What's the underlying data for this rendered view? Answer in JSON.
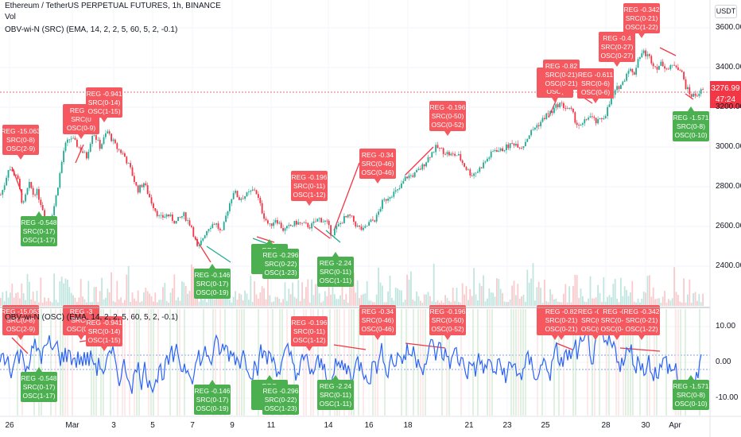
{
  "header": {
    "title": "Ethereum / TetherUS PERPETUAL FUTURES, 1h, BINANCE",
    "vol_label": "Vol",
    "indicator_label": "OBV-wi-N (SRC) (EMA, 14, 2, 2, 5, 60, 5, 2, -0.1)",
    "osc_label": "OBV-wi-N (OSC) (EMA, 14, 2, 2, 5, 60, 5, 2, -0.1)"
  },
  "scale_badge": "USDT",
  "price_tag": {
    "price": "3276.99",
    "countdown": "47:24"
  },
  "colors": {
    "bear": "#f23645",
    "bull": "#22ab94",
    "bear_box": "#f5595f",
    "bull_box": "#4caf50",
    "osc_line": "#2962ff"
  },
  "chart_data": [
    {
      "type": "line",
      "name": "price-panel",
      "x": [
        "26",
        "Mar",
        "3",
        "5",
        "7",
        "9",
        "11",
        "14",
        "16",
        "18",
        "21",
        "23",
        "25",
        "28",
        "30",
        "Apr"
      ],
      "y_ticks": [
        "3600.00",
        "3400.00",
        "3200.00",
        "3000.00",
        "2800.00",
        "2600.00",
        "2400.00"
      ],
      "ylim": [
        2200,
        3650
      ],
      "price_path": [
        [
          0,
          2760
        ],
        [
          4,
          2800
        ],
        [
          10,
          2900
        ],
        [
          15,
          2870
        ],
        [
          20,
          2860
        ],
        [
          28,
          2700
        ],
        [
          33,
          2780
        ],
        [
          37,
          2820
        ],
        [
          40,
          2760
        ],
        [
          45,
          2780
        ],
        [
          52,
          2700
        ],
        [
          57,
          2640
        ],
        [
          63,
          2650
        ],
        [
          66,
          2680
        ],
        [
          70,
          2760
        ],
        [
          80,
          3000
        ],
        [
          88,
          3050
        ],
        [
          98,
          3000
        ],
        [
          108,
          2950
        ],
        [
          116,
          3080
        ],
        [
          125,
          3000
        ],
        [
          134,
          3080
        ],
        [
          145,
          3000
        ],
        [
          155,
          2960
        ],
        [
          164,
          2880
        ],
        [
          172,
          2780
        ],
        [
          180,
          2820
        ],
        [
          190,
          2720
        ],
        [
          200,
          2640
        ],
        [
          210,
          2660
        ],
        [
          220,
          2620
        ],
        [
          230,
          2660
        ],
        [
          240,
          2600
        ],
        [
          248,
          2480
        ],
        [
          256,
          2560
        ],
        [
          262,
          2600
        ],
        [
          270,
          2620
        ],
        [
          278,
          2560
        ],
        [
          285,
          2680
        ],
        [
          293,
          2780
        ],
        [
          300,
          2740
        ],
        [
          310,
          2760
        ],
        [
          320,
          2790
        ],
        [
          330,
          2660
        ],
        [
          338,
          2600
        ],
        [
          346,
          2640
        ],
        [
          356,
          2580
        ],
        [
          364,
          2600
        ],
        [
          372,
          2620
        ],
        [
          380,
          2610
        ],
        [
          390,
          2600
        ],
        [
          400,
          2640
        ],
        [
          410,
          2620
        ],
        [
          416,
          2560
        ],
        [
          424,
          2600
        ],
        [
          432,
          2640
        ],
        [
          440,
          2650
        ],
        [
          448,
          2600
        ],
        [
          456,
          2580
        ],
        [
          464,
          2620
        ],
        [
          472,
          2640
        ],
        [
          480,
          2720
        ],
        [
          490,
          2760
        ],
        [
          500,
          2780
        ],
        [
          510,
          2850
        ],
        [
          520,
          2860
        ],
        [
          530,
          2900
        ],
        [
          540,
          2960
        ],
        [
          548,
          3000
        ],
        [
          556,
          2980
        ],
        [
          566,
          2960
        ],
        [
          575,
          2960
        ],
        [
          584,
          2900
        ],
        [
          592,
          2860
        ],
        [
          600,
          2880
        ],
        [
          608,
          2920
        ],
        [
          616,
          2960
        ],
        [
          622,
          2990
        ],
        [
          628,
          2980
        ],
        [
          636,
          3000
        ],
        [
          646,
          3020
        ],
        [
          656,
          3000
        ],
        [
          664,
          3060
        ],
        [
          672,
          3100
        ],
        [
          678,
          3120
        ],
        [
          686,
          3160
        ],
        [
          694,
          3180
        ],
        [
          702,
          3220
        ],
        [
          710,
          3200
        ],
        [
          718,
          3180
        ],
        [
          724,
          3120
        ],
        [
          730,
          3100
        ],
        [
          740,
          3160
        ],
        [
          750,
          3120
        ],
        [
          760,
          3160
        ],
        [
          768,
          3240
        ],
        [
          776,
          3300
        ],
        [
          782,
          3320
        ],
        [
          790,
          3400
        ],
        [
          796,
          3360
        ],
        [
          802,
          3450
        ],
        [
          808,
          3480
        ],
        [
          816,
          3450
        ],
        [
          824,
          3400
        ],
        [
          832,
          3420
        ],
        [
          840,
          3390
        ],
        [
          848,
          3420
        ],
        [
          856,
          3380
        ],
        [
          862,
          3300
        ],
        [
          868,
          3260
        ],
        [
          874,
          3260
        ],
        [
          880,
          3280
        ]
      ],
      "annotations": [
        {
          "kind": "bear",
          "lines": [
            "REG -15.063",
            "SRC(0-8)",
            "OSC(2-9)"
          ]
        },
        {
          "kind": "bear",
          "lines": [
            "REG -3",
            "SRC(0",
            "OSC(0-9)"
          ]
        },
        {
          "kind": "bear",
          "lines": [
            "REG -0.941",
            "SRC(0-14)",
            "OSC(1-15)"
          ]
        },
        {
          "kind": "bear",
          "lines": [
            "REG -0.196",
            "SRC(0-11)",
            "OSC(1-12)"
          ]
        },
        {
          "kind": "bear",
          "lines": [
            "REG -0.34",
            "SRC(0-46)",
            "OSC(0-46)"
          ]
        },
        {
          "kind": "bear",
          "lines": [
            "REG -0.196",
            "SRC(0-50)",
            "OSC(0-52)"
          ]
        },
        {
          "kind": "bear",
          "lines": [
            "REG",
            "S",
            "OSC("
          ]
        },
        {
          "kind": "bear",
          "lines": [
            "REG -0.82",
            "SRC(0-21)",
            "OSC(0-21)"
          ]
        },
        {
          "kind": "bear",
          "lines": [
            "REG -0.611",
            "SRC(0-6)",
            "OSC(0-6)"
          ]
        },
        {
          "kind": "bear",
          "lines": [
            "REG -0.4",
            "SRC(0-27)",
            "OSC(0-27)"
          ]
        },
        {
          "kind": "bear",
          "lines": [
            "REG -0.342",
            "SRC(0-21)",
            "OSC(1-22)"
          ]
        },
        {
          "kind": "bull",
          "lines": [
            "REG -0.548",
            "SRC(0-17)",
            "OSC(1-17)"
          ]
        },
        {
          "kind": "bull",
          "lines": [
            "REG -0.146",
            "SRC(0-17)",
            "OSC(0-19)"
          ]
        },
        {
          "kind": "bull",
          "lines": [
            "REG",
            "S",
            "OSC"
          ]
        },
        {
          "kind": "bull",
          "lines": [
            "REG -0.296",
            "SRC(0-22)",
            "OSC(1-23)"
          ]
        },
        {
          "kind": "bull",
          "lines": [
            "REG -2.24",
            "SRC(0-11)",
            "OSC(1-11)"
          ]
        },
        {
          "kind": "bull",
          "lines": [
            "REG -1.571",
            "SRC(0-8)",
            "OSC(0-10)"
          ]
        }
      ]
    },
    {
      "type": "line",
      "name": "oscillator-panel",
      "y_ticks": [
        "10.00",
        "0.00",
        "-10.00"
      ],
      "ylim": [
        -14,
        14
      ]
    }
  ]
}
